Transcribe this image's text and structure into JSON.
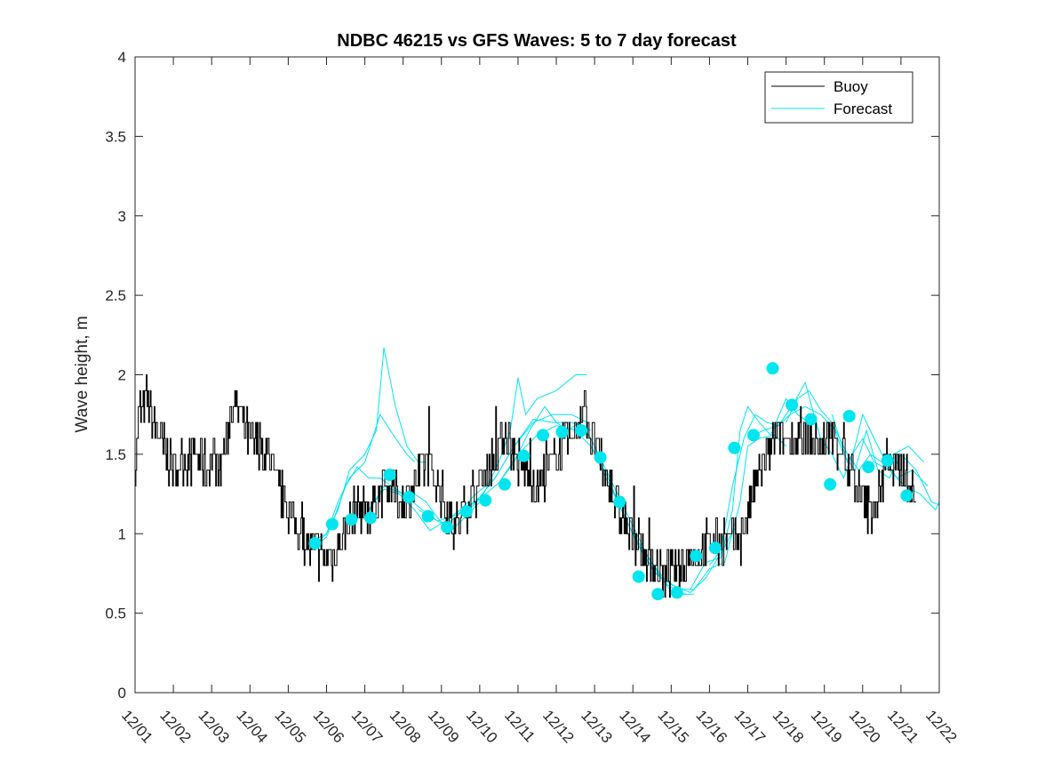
{
  "chart_data": {
    "type": "line",
    "title": "NDBC 46215 vs GFS Waves: 5 to 7 day forecast",
    "ylabel": "Wave height, m",
    "xlabel": "",
    "ylim": [
      0,
      4
    ],
    "xlim": [
      0,
      21
    ],
    "yticks": [
      0,
      0.5,
      1,
      1.5,
      2,
      2.5,
      3,
      3.5,
      4
    ],
    "ytick_labels": [
      "0",
      "0.5",
      "1",
      "1.5",
      "2",
      "2.5",
      "3",
      "3.5",
      "4"
    ],
    "xtick_labels": [
      "12/01",
      "12/02",
      "12/03",
      "12/04",
      "12/05",
      "12/06",
      "12/07",
      "12/08",
      "12/09",
      "12/10",
      "12/11",
      "12/12",
      "12/13",
      "12/14",
      "12/15",
      "12/16",
      "12/17",
      "12/18",
      "12/19",
      "12/20",
      "12/21",
      "12/22"
    ],
    "x_units": "days since 12/01",
    "legend": {
      "position": "top-right",
      "entries": [
        {
          "name": "Buoy",
          "color": "#000000"
        },
        {
          "name": "Forecast",
          "color": "#00e5ee"
        }
      ]
    },
    "colors": {
      "buoy": "#000000",
      "forecast": "#00e5ee",
      "axes": "#262626"
    },
    "buoy_anchors": [
      [
        0.0,
        1.4
      ],
      [
        0.1,
        1.75
      ],
      [
        0.3,
        1.85
      ],
      [
        0.5,
        1.7
      ],
      [
        0.8,
        1.5
      ],
      [
        1.0,
        1.4
      ],
      [
        1.3,
        1.45
      ],
      [
        1.6,
        1.5
      ],
      [
        1.9,
        1.4
      ],
      [
        2.0,
        1.5
      ],
      [
        2.2,
        1.4
      ],
      [
        2.4,
        1.6
      ],
      [
        2.5,
        1.8
      ],
      [
        2.6,
        1.85
      ],
      [
        2.8,
        1.7
      ],
      [
        3.0,
        1.6
      ],
      [
        3.2,
        1.55
      ],
      [
        3.5,
        1.5
      ],
      [
        3.7,
        1.3
      ],
      [
        3.9,
        1.2
      ],
      [
        4.1,
        1.1
      ],
      [
        4.3,
        1.0
      ],
      [
        4.6,
        0.9
      ],
      [
        4.9,
        0.85
      ],
      [
        5.2,
        0.85
      ],
      [
        5.4,
        1.0
      ],
      [
        5.6,
        1.1
      ],
      [
        5.8,
        1.2
      ],
      [
        6.0,
        1.15
      ],
      [
        6.2,
        1.15
      ],
      [
        6.4,
        1.25
      ],
      [
        6.6,
        1.3
      ],
      [
        6.8,
        1.25
      ],
      [
        7.0,
        1.2
      ],
      [
        7.3,
        1.3
      ],
      [
        7.5,
        1.4
      ],
      [
        7.6,
        1.45
      ],
      [
        7.8,
        1.35
      ],
      [
        8.0,
        1.25
      ],
      [
        8.2,
        1.1
      ],
      [
        8.4,
        1.05
      ],
      [
        8.6,
        1.15
      ],
      [
        8.8,
        1.25
      ],
      [
        9.0,
        1.3
      ],
      [
        9.3,
        1.45
      ],
      [
        9.5,
        1.55
      ],
      [
        9.7,
        1.65
      ],
      [
        9.8,
        1.55
      ],
      [
        10.0,
        1.45
      ],
      [
        10.2,
        1.4
      ],
      [
        10.5,
        1.3
      ],
      [
        10.8,
        1.4
      ],
      [
        11.0,
        1.5
      ],
      [
        11.2,
        1.55
      ],
      [
        11.5,
        1.6
      ],
      [
        11.6,
        1.75
      ],
      [
        11.75,
        1.8
      ],
      [
        11.9,
        1.6
      ],
      [
        12.1,
        1.5
      ],
      [
        12.3,
        1.35
      ],
      [
        12.5,
        1.2
      ],
      [
        12.7,
        1.1
      ],
      [
        12.9,
        1.0
      ],
      [
        13.1,
        0.95
      ],
      [
        13.3,
        0.85
      ],
      [
        13.5,
        0.8
      ],
      [
        13.7,
        0.75
      ],
      [
        14.0,
        0.75
      ],
      [
        14.3,
        0.8
      ],
      [
        14.5,
        0.85
      ],
      [
        14.8,
        0.9
      ],
      [
        15.0,
        0.95
      ],
      [
        15.3,
        0.95
      ],
      [
        15.6,
        0.95
      ],
      [
        15.8,
        0.95
      ],
      [
        16.0,
        1.15
      ],
      [
        16.2,
        1.3
      ],
      [
        16.4,
        1.45
      ],
      [
        16.6,
        1.55
      ],
      [
        16.8,
        1.6
      ],
      [
        17.0,
        1.6
      ],
      [
        17.3,
        1.6
      ],
      [
        17.6,
        1.6
      ],
      [
        17.9,
        1.55
      ],
      [
        18.2,
        1.6
      ],
      [
        18.5,
        1.5
      ],
      [
        18.8,
        1.3
      ],
      [
        19.0,
        1.2
      ],
      [
        19.2,
        1.15
      ],
      [
        19.5,
        1.3
      ],
      [
        19.6,
        1.55
      ],
      [
        19.8,
        1.35
      ],
      [
        20.0,
        1.45
      ],
      [
        20.2,
        1.3
      ],
      [
        20.4,
        1.2
      ]
    ],
    "forecast_runs": [
      {
        "points": [
          [
            4.6,
            0.95
          ],
          [
            5.0,
            1.0
          ],
          [
            5.3,
            1.15
          ],
          [
            5.6,
            1.4
          ],
          [
            6.0,
            1.5
          ],
          [
            6.3,
            1.65
          ],
          [
            6.5,
            2.17
          ],
          [
            6.8,
            1.8
          ],
          [
            7.1,
            1.55
          ],
          [
            7.4,
            1.45
          ],
          [
            7.6,
            1.45
          ]
        ]
      },
      {
        "points": [
          [
            4.7,
            0.93
          ],
          [
            5.0,
            1.0
          ],
          [
            5.3,
            1.2
          ],
          [
            5.6,
            1.35
          ],
          [
            6.0,
            1.45
          ],
          [
            6.4,
            1.75
          ],
          [
            6.8,
            1.6
          ],
          [
            7.1,
            1.5
          ],
          [
            7.3,
            1.45
          ]
        ]
      },
      {
        "points": [
          [
            4.7,
            0.92
          ],
          [
            5.0,
            0.98
          ],
          [
            5.2,
            1.1
          ],
          [
            5.5,
            1.3
          ],
          [
            5.8,
            1.42
          ],
          [
            6.1,
            1.35
          ],
          [
            6.4,
            1.35
          ],
          [
            6.7,
            1.3
          ],
          [
            7.0,
            1.25
          ],
          [
            7.3,
            1.25
          ],
          [
            7.6,
            1.2
          ],
          [
            7.9,
            1.1
          ],
          [
            8.1,
            1.05
          ]
        ]
      },
      {
        "points": [
          [
            5.5,
            1.1
          ],
          [
            6.0,
            1.1
          ],
          [
            6.5,
            1.3
          ],
          [
            7.0,
            1.25
          ],
          [
            7.5,
            1.15
          ],
          [
            7.9,
            1.08
          ],
          [
            8.3,
            1.03
          ],
          [
            8.6,
            1.1
          ],
          [
            9.0,
            1.2
          ]
        ]
      },
      {
        "points": [
          [
            6.1,
            1.15
          ],
          [
            6.5,
            1.28
          ],
          [
            6.9,
            1.25
          ],
          [
            7.3,
            1.15
          ],
          [
            7.7,
            1.02
          ],
          [
            8.1,
            1.08
          ],
          [
            8.5,
            1.15
          ],
          [
            8.9,
            1.25
          ],
          [
            9.4,
            1.35
          ],
          [
            9.9,
            1.55
          ],
          [
            10.4,
            1.7
          ],
          [
            10.9,
            1.75
          ],
          [
            11.4,
            1.75
          ],
          [
            11.8,
            1.7
          ]
        ]
      },
      {
        "points": [
          [
            7.4,
            1.15
          ],
          [
            7.9,
            1.08
          ],
          [
            8.4,
            1.12
          ],
          [
            8.9,
            1.2
          ],
          [
            9.4,
            1.35
          ],
          [
            9.9,
            1.55
          ],
          [
            10.4,
            1.72
          ],
          [
            10.9,
            1.7
          ],
          [
            11.4,
            1.7
          ],
          [
            11.9,
            1.65
          ]
        ]
      },
      {
        "points": [
          [
            8.1,
            1.05
          ],
          [
            8.6,
            1.15
          ],
          [
            9.1,
            1.25
          ],
          [
            9.5,
            1.45
          ],
          [
            9.8,
            1.65
          ],
          [
            10.0,
            1.98
          ],
          [
            10.2,
            1.75
          ],
          [
            10.5,
            1.85
          ],
          [
            11.0,
            1.9
          ],
          [
            11.5,
            2.0
          ],
          [
            11.8,
            2.0
          ]
        ]
      },
      {
        "points": [
          [
            8.6,
            1.12
          ],
          [
            9.0,
            1.22
          ],
          [
            9.5,
            1.32
          ],
          [
            9.9,
            1.45
          ],
          [
            10.3,
            1.65
          ],
          [
            10.7,
            1.8
          ],
          [
            11.0,
            1.7
          ],
          [
            11.3,
            1.65
          ],
          [
            11.6,
            1.7
          ],
          [
            11.9,
            1.6
          ],
          [
            12.2,
            1.45
          ],
          [
            12.6,
            1.25
          ],
          [
            13.0,
            1.05
          ],
          [
            13.4,
            0.85
          ],
          [
            13.8,
            0.7
          ],
          [
            14.0,
            0.64
          ],
          [
            14.4,
            0.62
          ]
        ]
      },
      {
        "points": [
          [
            9.5,
            1.32
          ],
          [
            10.0,
            1.5
          ],
          [
            10.5,
            1.62
          ],
          [
            11.0,
            1.68
          ],
          [
            11.5,
            1.65
          ],
          [
            11.9,
            1.55
          ],
          [
            12.3,
            1.38
          ],
          [
            12.7,
            1.15
          ],
          [
            13.1,
            0.95
          ],
          [
            13.5,
            0.78
          ],
          [
            13.9,
            0.68
          ],
          [
            14.3,
            0.62
          ],
          [
            14.6,
            0.62
          ]
        ]
      },
      {
        "points": [
          [
            12.0,
            1.5
          ],
          [
            12.4,
            1.3
          ],
          [
            12.8,
            1.1
          ],
          [
            13.2,
            0.9
          ],
          [
            13.6,
            0.75
          ],
          [
            14.0,
            0.68
          ],
          [
            14.5,
            0.63
          ],
          [
            14.9,
            0.72
          ],
          [
            15.3,
            0.88
          ],
          [
            15.7,
            1.05
          ]
        ]
      },
      {
        "points": [
          [
            13.0,
            1.0
          ],
          [
            13.4,
            0.85
          ],
          [
            13.8,
            0.72
          ],
          [
            14.2,
            0.65
          ],
          [
            14.6,
            0.65
          ],
          [
            15.0,
            0.78
          ],
          [
            15.4,
            0.82
          ],
          [
            15.8,
            1.2
          ],
          [
            16.0,
            1.55
          ],
          [
            16.3,
            1.6
          ],
          [
            16.7,
            1.62
          ],
          [
            17.0,
            1.55
          ]
        ]
      },
      {
        "points": [
          [
            14.5,
            0.65
          ],
          [
            14.9,
            0.82
          ],
          [
            15.3,
            0.85
          ],
          [
            15.6,
            1.15
          ],
          [
            15.8,
            1.65
          ],
          [
            16.0,
            1.8
          ],
          [
            16.3,
            1.7
          ],
          [
            16.6,
            1.62
          ],
          [
            17.0,
            1.85
          ],
          [
            17.3,
            1.75
          ],
          [
            17.6,
            1.7
          ]
        ]
      },
      {
        "points": [
          [
            15.0,
            0.8
          ],
          [
            15.3,
            0.9
          ],
          [
            15.6,
            1.3
          ],
          [
            15.9,
            1.6
          ],
          [
            16.2,
            1.75
          ],
          [
            16.5,
            1.7
          ],
          [
            16.8,
            1.68
          ],
          [
            17.1,
            1.75
          ],
          [
            17.5,
            1.8
          ],
          [
            17.9,
            1.75
          ],
          [
            18.3,
            1.65
          ],
          [
            18.6,
            1.5
          ],
          [
            18.9,
            1.4
          ],
          [
            19.2,
            1.5
          ],
          [
            19.5,
            1.45
          ],
          [
            19.8,
            1.5
          ],
          [
            20.2,
            1.55
          ],
          [
            20.6,
            1.45
          ]
        ]
      },
      {
        "points": [
          [
            16.0,
            1.6
          ],
          [
            16.4,
            1.65
          ],
          [
            16.8,
            1.68
          ],
          [
            17.2,
            1.82
          ],
          [
            17.5,
            1.95
          ],
          [
            17.9,
            1.6
          ],
          [
            18.2,
            1.5
          ],
          [
            18.5,
            1.35
          ],
          [
            18.8,
            1.55
          ],
          [
            19.0,
            1.75
          ],
          [
            19.3,
            1.6
          ],
          [
            19.6,
            1.45
          ],
          [
            19.9,
            1.35
          ],
          [
            20.3,
            1.4
          ],
          [
            20.7,
            1.3
          ]
        ]
      },
      {
        "points": [
          [
            17.0,
            1.7
          ],
          [
            17.3,
            1.85
          ],
          [
            17.6,
            1.9
          ],
          [
            17.9,
            1.78
          ],
          [
            18.2,
            1.7
          ],
          [
            18.5,
            1.5
          ],
          [
            18.8,
            1.4
          ],
          [
            19.1,
            1.65
          ],
          [
            19.4,
            1.4
          ],
          [
            19.7,
            1.35
          ],
          [
            20.0,
            1.5
          ],
          [
            20.4,
            1.4
          ],
          [
            20.8,
            1.2
          ],
          [
            21.0,
            1.18
          ]
        ]
      },
      {
        "points": [
          [
            18.2,
            1.75
          ],
          [
            18.6,
            1.45
          ],
          [
            19.0,
            1.6
          ],
          [
            19.3,
            1.45
          ],
          [
            19.7,
            1.4
          ],
          [
            20.1,
            1.3
          ],
          [
            20.5,
            1.25
          ],
          [
            20.9,
            1.15
          ],
          [
            21.0,
            1.2
          ]
        ]
      }
    ],
    "forecast_markers": [
      [
        4.7,
        0.94
      ],
      [
        5.15,
        1.06
      ],
      [
        5.65,
        1.09
      ],
      [
        6.15,
        1.1
      ],
      [
        6.65,
        1.37
      ],
      [
        7.15,
        1.23
      ],
      [
        7.65,
        1.11
      ],
      [
        8.15,
        1.04
      ],
      [
        8.65,
        1.14
      ],
      [
        9.15,
        1.21
      ],
      [
        9.65,
        1.31
      ],
      [
        10.15,
        1.49
      ],
      [
        10.65,
        1.62
      ],
      [
        11.15,
        1.64
      ],
      [
        11.65,
        1.65
      ],
      [
        12.15,
        1.48
      ],
      [
        12.65,
        1.2
      ],
      [
        13.15,
        0.73
      ],
      [
        13.65,
        0.62
      ],
      [
        14.15,
        0.63
      ],
      [
        14.65,
        0.86
      ],
      [
        15.15,
        0.91
      ],
      [
        15.65,
        1.54
      ],
      [
        16.15,
        1.62
      ],
      [
        16.65,
        2.04
      ],
      [
        17.15,
        1.81
      ],
      [
        17.65,
        1.72
      ],
      [
        18.15,
        1.31
      ],
      [
        18.65,
        1.74
      ],
      [
        19.15,
        1.42
      ],
      [
        19.65,
        1.46
      ],
      [
        20.15,
        1.24
      ]
    ]
  }
}
